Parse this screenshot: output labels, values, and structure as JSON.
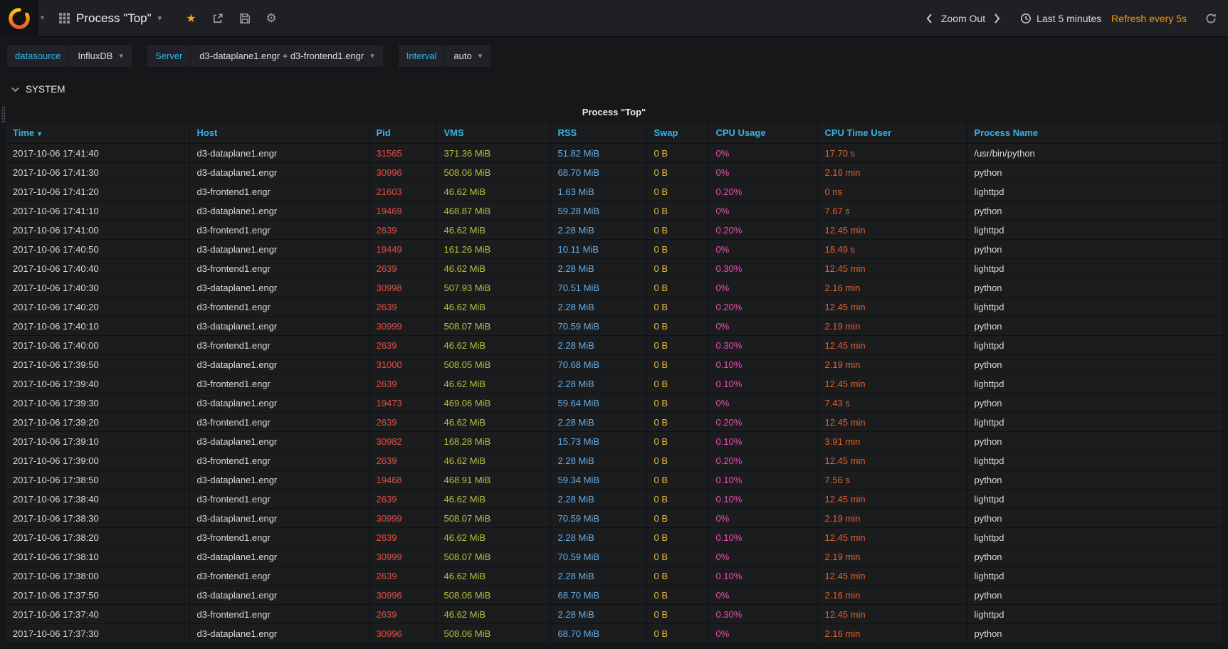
{
  "icons": {
    "caret": "▾",
    "gear": "⚙",
    "star": "★"
  },
  "navbar": {
    "title": "Process \"Top\"",
    "zoom_out": "Zoom Out",
    "time_range": "Last 5 minutes",
    "refresh_label": "Refresh every 5s"
  },
  "submenu": {
    "variables": [
      {
        "label": "datasource",
        "value": "InfluxDB"
      },
      {
        "label": "Server",
        "value": "d3-dataplane1.engr + d3-frontend1.engr"
      },
      {
        "label": "Interval",
        "value": "auto"
      }
    ]
  },
  "row": {
    "title": "SYSTEM"
  },
  "panel": {
    "title": "Process \"Top\""
  },
  "table": {
    "columns": [
      "Time",
      "Host",
      "Pid",
      "VMS",
      "RSS",
      "Swap",
      "CPU Usage",
      "CPU Time User",
      "Process Name"
    ],
    "rows": [
      [
        "2017-10-06 17:41:40",
        "d3-dataplane1.engr",
        "31565",
        "371.36 MiB",
        "51.82 MiB",
        "0 B",
        "0%",
        "17.70 s",
        "/usr/bin/python"
      ],
      [
        "2017-10-06 17:41:30",
        "d3-dataplane1.engr",
        "30996",
        "508.06 MiB",
        "68.70 MiB",
        "0 B",
        "0%",
        "2.16 min",
        "python"
      ],
      [
        "2017-10-06 17:41:20",
        "d3-frontend1.engr",
        "21603",
        "46.62 MiB",
        "1.63 MiB",
        "0 B",
        "0.20%",
        "0 ns",
        "lighttpd"
      ],
      [
        "2017-10-06 17:41:10",
        "d3-dataplane1.engr",
        "19469",
        "468.87 MiB",
        "59.28 MiB",
        "0 B",
        "0%",
        "7.67 s",
        "python"
      ],
      [
        "2017-10-06 17:41:00",
        "d3-frontend1.engr",
        "2639",
        "46.62 MiB",
        "2.28 MiB",
        "0 B",
        "0.20%",
        "12.45 min",
        "lighttpd"
      ],
      [
        "2017-10-06 17:40:50",
        "d3-dataplane1.engr",
        "19449",
        "161.26 MiB",
        "10.11 MiB",
        "0 B",
        "0%",
        "18.49 s",
        "python"
      ],
      [
        "2017-10-06 17:40:40",
        "d3-frontend1.engr",
        "2639",
        "46.62 MiB",
        "2.28 MiB",
        "0 B",
        "0.30%",
        "12.45 min",
        "lighttpd"
      ],
      [
        "2017-10-06 17:40:30",
        "d3-dataplane1.engr",
        "30998",
        "507.93 MiB",
        "70.51 MiB",
        "0 B",
        "0%",
        "2.16 min",
        "python"
      ],
      [
        "2017-10-06 17:40:20",
        "d3-frontend1.engr",
        "2639",
        "46.62 MiB",
        "2.28 MiB",
        "0 B",
        "0.20%",
        "12.45 min",
        "lighttpd"
      ],
      [
        "2017-10-06 17:40:10",
        "d3-dataplane1.engr",
        "30999",
        "508.07 MiB",
        "70.59 MiB",
        "0 B",
        "0%",
        "2.19 min",
        "python"
      ],
      [
        "2017-10-06 17:40:00",
        "d3-frontend1.engr",
        "2639",
        "46.62 MiB",
        "2.28 MiB",
        "0 B",
        "0.30%",
        "12.45 min",
        "lighttpd"
      ],
      [
        "2017-10-06 17:39:50",
        "d3-dataplane1.engr",
        "31000",
        "508.05 MiB",
        "70.68 MiB",
        "0 B",
        "0.10%",
        "2.19 min",
        "python"
      ],
      [
        "2017-10-06 17:39:40",
        "d3-frontend1.engr",
        "2639",
        "46.62 MiB",
        "2.28 MiB",
        "0 B",
        "0.10%",
        "12.45 min",
        "lighttpd"
      ],
      [
        "2017-10-06 17:39:30",
        "d3-dataplane1.engr",
        "19473",
        "469.06 MiB",
        "59.64 MiB",
        "0 B",
        "0%",
        "7.43 s",
        "python"
      ],
      [
        "2017-10-06 17:39:20",
        "d3-frontend1.engr",
        "2639",
        "46.62 MiB",
        "2.28 MiB",
        "0 B",
        "0.20%",
        "12.45 min",
        "lighttpd"
      ],
      [
        "2017-10-06 17:39:10",
        "d3-dataplane1.engr",
        "30982",
        "168.28 MiB",
        "15.73 MiB",
        "0 B",
        "0.10%",
        "3.91 min",
        "python"
      ],
      [
        "2017-10-06 17:39:00",
        "d3-frontend1.engr",
        "2639",
        "46.62 MiB",
        "2.28 MiB",
        "0 B",
        "0.20%",
        "12.45 min",
        "lighttpd"
      ],
      [
        "2017-10-06 17:38:50",
        "d3-dataplane1.engr",
        "19468",
        "468.91 MiB",
        "59.34 MiB",
        "0 B",
        "0.10%",
        "7.56 s",
        "python"
      ],
      [
        "2017-10-06 17:38:40",
        "d3-frontend1.engr",
        "2639",
        "46.62 MiB",
        "2.28 MiB",
        "0 B",
        "0.10%",
        "12.45 min",
        "lighttpd"
      ],
      [
        "2017-10-06 17:38:30",
        "d3-dataplane1.engr",
        "30999",
        "508.07 MiB",
        "70.59 MiB",
        "0 B",
        "0%",
        "2.19 min",
        "python"
      ],
      [
        "2017-10-06 17:38:20",
        "d3-frontend1.engr",
        "2639",
        "46.62 MiB",
        "2.28 MiB",
        "0 B",
        "0.10%",
        "12.45 min",
        "lighttpd"
      ],
      [
        "2017-10-06 17:38:10",
        "d3-dataplane1.engr",
        "30999",
        "508.07 MiB",
        "70.59 MiB",
        "0 B",
        "0%",
        "2.19 min",
        "python"
      ],
      [
        "2017-10-06 17:38:00",
        "d3-frontend1.engr",
        "2639",
        "46.62 MiB",
        "2.28 MiB",
        "0 B",
        "0.10%",
        "12.45 min",
        "lighttpd"
      ],
      [
        "2017-10-06 17:37:50",
        "d3-dataplane1.engr",
        "30996",
        "508.06 MiB",
        "68.70 MiB",
        "0 B",
        "0%",
        "2.16 min",
        "python"
      ],
      [
        "2017-10-06 17:37:40",
        "d3-frontend1.engr",
        "2639",
        "46.62 MiB",
        "2.28 MiB",
        "0 B",
        "0.30%",
        "12.45 min",
        "lighttpd"
      ],
      [
        "2017-10-06 17:37:30",
        "d3-dataplane1.engr",
        "30996",
        "508.06 MiB",
        "68.70 MiB",
        "0 B",
        "0%",
        "2.16 min",
        "python"
      ]
    ]
  },
  "colors": {
    "link_blue": "#33b5e5",
    "pid": "#e24d42",
    "vms": "#b9bd3c",
    "rss": "#64aee8",
    "swap": "#eab839",
    "cpu_usage": "#ea4fb4",
    "cpu_time_user": "#e0612f",
    "refresh_orange": "#f7941e",
    "star_orange": "#f0a513"
  }
}
